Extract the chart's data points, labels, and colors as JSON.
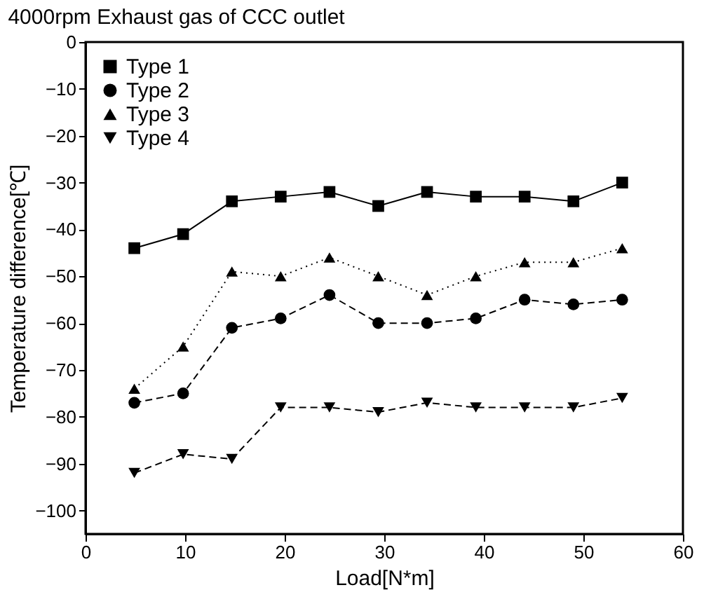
{
  "chart_data": {
    "type": "line",
    "title": "4000rpm Exhaust gas of CCC outlet",
    "xlabel": "Load[N*m]",
    "ylabel": "Temperature difference[℃]",
    "x": [
      4.9,
      9.8,
      14.7,
      19.6,
      24.5,
      29.4,
      34.3,
      39.2,
      44.1,
      49,
      53.9
    ],
    "series": [
      {
        "name": "Type 1",
        "color": "#000000",
        "marker": "square",
        "line_style": "solid",
        "values": [
          -44,
          -41,
          -34,
          -33,
          -32,
          -35,
          -32,
          -33,
          -33,
          -34,
          -30
        ]
      },
      {
        "name": "Type 2",
        "color": "#000000",
        "marker": "circle",
        "line_style": "dashed",
        "values": [
          -77,
          -75,
          -61,
          -59,
          -54,
          -60,
          -60,
          -59,
          -55,
          -56,
          -55
        ]
      },
      {
        "name": "Type 3",
        "color": "#000000",
        "marker": "triangle",
        "line_style": "dotted",
        "values": [
          -74,
          -65,
          -49,
          -50,
          -46,
          -50,
          -54,
          -50,
          -47,
          -47,
          -44
        ]
      },
      {
        "name": "Type 4",
        "color": "#000000",
        "marker": "triangle-down",
        "line_style": "dashed",
        "values": [
          -92,
          -88,
          -89,
          -78,
          -78,
          -79,
          -77,
          -78,
          -78,
          -78,
          -76
        ]
      }
    ],
    "xlim": [
      0,
      60
    ],
    "xticks": [
      0,
      10,
      20,
      30,
      40,
      50,
      60
    ],
    "ylim": [
      -105,
      0
    ],
    "yticks": [
      0,
      -10,
      -20,
      -30,
      -40,
      -50,
      -60,
      -70,
      -80,
      -90,
      -100
    ],
    "grid": false,
    "legend": "top left"
  }
}
